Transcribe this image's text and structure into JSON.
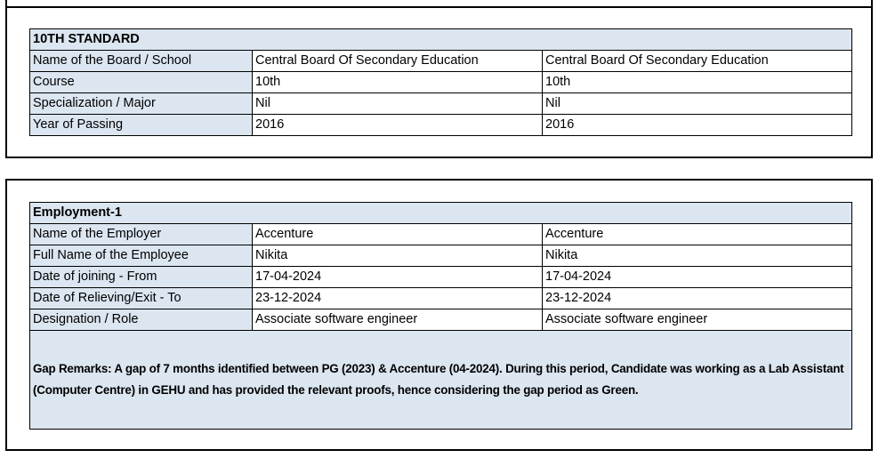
{
  "education": {
    "title": "10TH STANDARD",
    "rows": [
      {
        "label": "Name of the Board / School",
        "v1": "Central Board Of Secondary Education",
        "v2": "Central Board Of Secondary Education"
      },
      {
        "label": "Course",
        "v1": "10th",
        "v2": "10th"
      },
      {
        "label": "Specialization / Major",
        "v1": "Nil",
        "v2": "Nil"
      },
      {
        "label": "Year of Passing",
        "v1": "2016",
        "v2": "2016"
      }
    ]
  },
  "employment": {
    "title": "Employment-1",
    "rows": [
      {
        "label": "Name of the Employer",
        "v1": "Accenture",
        "v2": "Accenture"
      },
      {
        "label": "Full Name of the Employee",
        "v1": "Nikita",
        "v2": "Nikita"
      },
      {
        "label": "Date of joining - From",
        "v1": "17-04-2024",
        "v2": "17-04-2024"
      },
      {
        "label": "Date of Relieving/Exit - To",
        "v1": "23-12-2024",
        "v2": "23-12-2024"
      },
      {
        "label": "Designation / Role",
        "v1": "Associate software engineer",
        "v2": "Associate software engineer"
      }
    ],
    "remarks": "Gap Remarks: A gap of 7 months identified between PG (2023) & Accenture (04-2024). During this period, Candidate was working as a Lab Assistant (Computer Centre) in GEHU and has provided the relevant proofs, hence considering the gap period as Green."
  },
  "colors": {
    "header_fill": "#dce6f1",
    "border": "#000000"
  }
}
